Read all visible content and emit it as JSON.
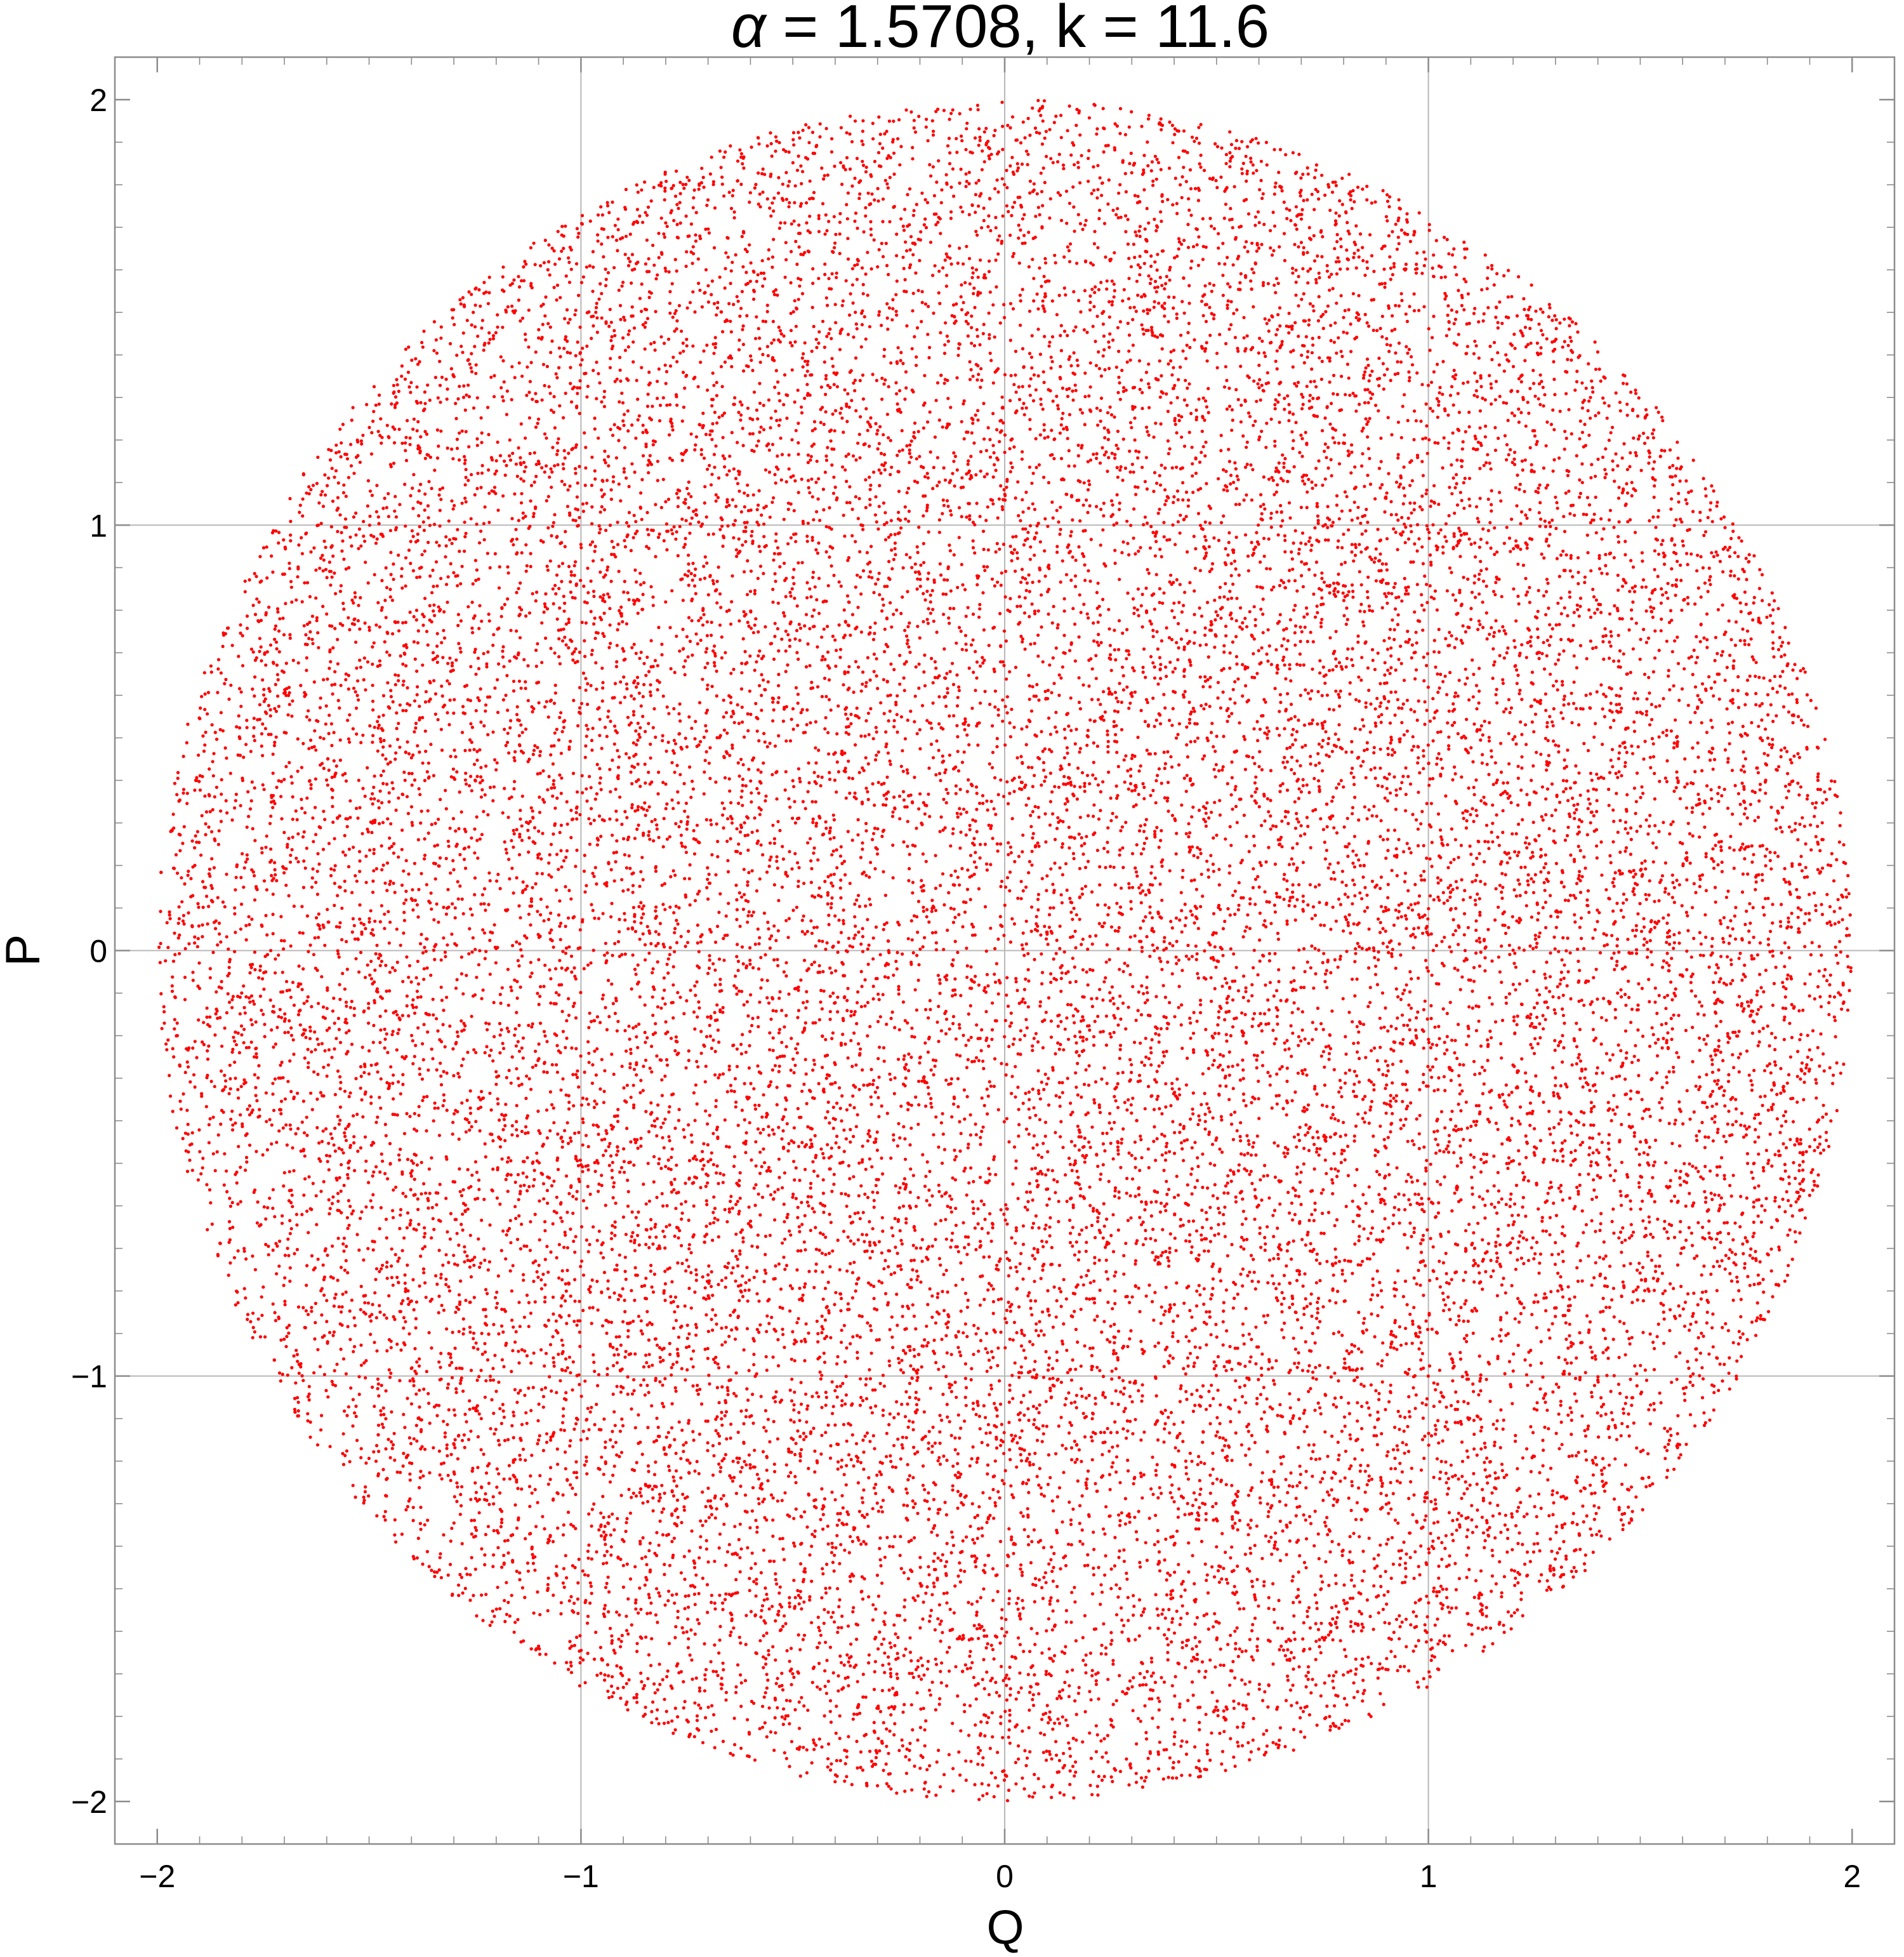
{
  "chart_data": {
    "type": "scatter",
    "title": "α = 1.5708, k = 11.6",
    "title_parts": {
      "symbol": "α",
      "rest": " = 1.5708, k = 11.6"
    },
    "xlabel": "Q",
    "ylabel": "P",
    "xlim": [
      -2.1,
      2.1
    ],
    "ylim": [
      -2.1,
      2.1
    ],
    "xticks": [
      -2,
      -1,
      0,
      1,
      2
    ],
    "yticks": [
      -2,
      -1,
      0,
      1,
      2
    ],
    "xtick_labels": [
      "−2",
      "−1",
      "0",
      "1",
      "2"
    ],
    "ytick_labels": [
      "−2",
      "−1",
      "0",
      "1",
      "2"
    ],
    "grid": true,
    "grid_lines": [
      -1,
      0,
      1
    ],
    "legend": "none",
    "series": [
      {
        "marker_color": "#ff0000",
        "distribution": "uniform-disk",
        "center": [
          0,
          0
        ],
        "radius": 2,
        "point_count": 24000
      }
    ]
  }
}
